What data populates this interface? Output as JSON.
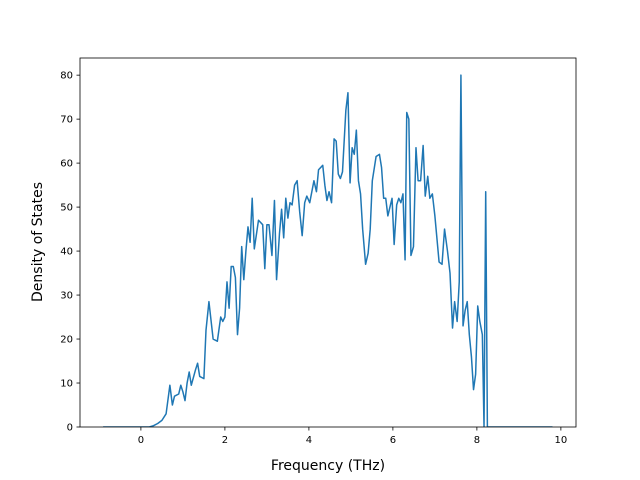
{
  "chart_data": {
    "type": "line",
    "xlabel": "Frequency (THz)",
    "ylabel": "Density of States",
    "xlim": [
      -1.45,
      10.36
    ],
    "ylim": [
      0,
      83.9
    ],
    "xticks": [
      0,
      2,
      4,
      6,
      8,
      10
    ],
    "yticks": [
      0,
      10,
      20,
      30,
      40,
      50,
      60,
      70,
      80
    ],
    "color": "#1f77b4",
    "x": [
      -0.9,
      0.2,
      0.3,
      0.4,
      0.5,
      0.6,
      0.69,
      0.75,
      0.8,
      0.9,
      0.95,
      1.0,
      1.05,
      1.1,
      1.15,
      1.2,
      1.3,
      1.35,
      1.4,
      1.5,
      1.55,
      1.62,
      1.72,
      1.82,
      1.9,
      1.95,
      2.0,
      2.05,
      2.1,
      2.15,
      2.2,
      2.25,
      2.3,
      2.35,
      2.4,
      2.45,
      2.5,
      2.55,
      2.6,
      2.65,
      2.7,
      2.8,
      2.9,
      2.95,
      3.0,
      3.05,
      3.12,
      3.18,
      3.23,
      3.3,
      3.35,
      3.4,
      3.45,
      3.5,
      3.55,
      3.6,
      3.66,
      3.72,
      3.78,
      3.84,
      3.9,
      3.95,
      4.02,
      4.12,
      4.18,
      4.23,
      4.33,
      4.38,
      4.43,
      4.48,
      4.54,
      4.6,
      4.65,
      4.7,
      4.75,
      4.8,
      4.88,
      4.93,
      4.98,
      5.03,
      5.08,
      5.13,
      5.18,
      5.23,
      5.28,
      5.35,
      5.41,
      5.46,
      5.51,
      5.6,
      5.68,
      5.73,
      5.78,
      5.83,
      5.88,
      5.93,
      5.98,
      6.03,
      6.09,
      6.14,
      6.19,
      6.24,
      6.29,
      6.33,
      6.38,
      6.43,
      6.49,
      6.55,
      6.6,
      6.66,
      6.72,
      6.77,
      6.83,
      6.88,
      6.94,
      7.0,
      7.1,
      7.17,
      7.23,
      7.3,
      7.36,
      7.42,
      7.47,
      7.53,
      7.58,
      7.62,
      7.67,
      7.72,
      7.77,
      7.82,
      7.87,
      7.92,
      7.97,
      8.02,
      8.07,
      8.13,
      8.17,
      8.21,
      8.25,
      9.8
    ],
    "values": [
      0,
      0,
      0.3,
      0.8,
      1.5,
      3,
      9.5,
      5,
      7,
      7.5,
      9.5,
      8,
      6,
      10,
      12.5,
      9.5,
      13,
      14.5,
      11.5,
      11,
      22,
      28.5,
      20,
      19.5,
      25,
      24,
      25,
      33,
      27,
      36.5,
      36.5,
      34,
      21,
      27,
      41,
      33.5,
      40,
      45.5,
      42,
      52,
      40.5,
      47,
      46,
      36,
      46,
      46,
      39,
      51.5,
      33.5,
      44,
      49.5,
      43,
      52,
      47.5,
      51,
      50.5,
      55,
      56,
      49,
      43.5,
      51,
      52.5,
      51,
      56,
      53.5,
      58.5,
      59.5,
      55,
      51.5,
      53.5,
      51,
      65.5,
      65,
      57.5,
      56.5,
      58,
      72,
      76,
      55.5,
      63.5,
      62,
      67.5,
      56,
      53,
      45,
      37,
      39.5,
      45,
      56,
      61.5,
      62,
      59,
      52,
      52,
      48,
      50,
      52,
      41.5,
      50.5,
      52,
      51,
      53,
      38,
      71.5,
      70,
      39,
      41,
      63.5,
      56,
      56,
      64,
      52.5,
      57,
      52,
      53,
      48,
      37.5,
      37,
      45,
      40,
      35,
      22.5,
      28.5,
      24,
      33,
      80,
      23,
      26.5,
      28.5,
      21,
      16,
      8.5,
      12,
      27.5,
      24,
      21,
      0,
      53.5,
      0,
      0
    ]
  }
}
